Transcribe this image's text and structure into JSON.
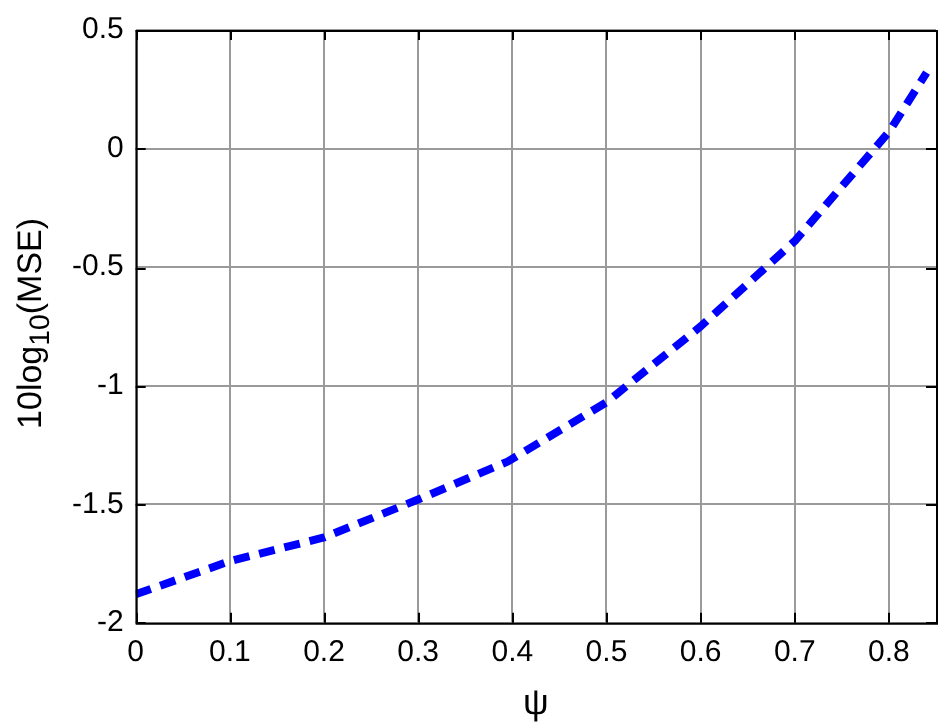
{
  "chart_data": {
    "type": "line",
    "xlabel": "ψ",
    "ylabel": "10log$_{10}$(MSE)",
    "series": [
      {
        "color": "#0000ff",
        "x": [
          0,
          0.1,
          0.2,
          0.3,
          0.395,
          0.5,
          0.6,
          0.7,
          0.75,
          0.8,
          0.84
        ],
        "values": [
          -1.88,
          -1.74,
          -1.64,
          -1.48,
          -1.32,
          -1.07,
          -0.75,
          -0.39,
          -0.16,
          0.07,
          0.32
        ]
      }
    ],
    "xlim": [
      0,
      0.85
    ],
    "xticks": [
      0,
      0.1,
      0.2,
      0.3,
      0.4,
      0.5,
      0.6,
      0.7,
      0.8
    ],
    "ylim": [
      -2,
      0.5
    ],
    "yticks": [
      -2,
      -1.5,
      -1,
      -0.5,
      0,
      0.5
    ],
    "grid": true,
    "line_style": "dashed",
    "marker": "none",
    "legend": false
  }
}
